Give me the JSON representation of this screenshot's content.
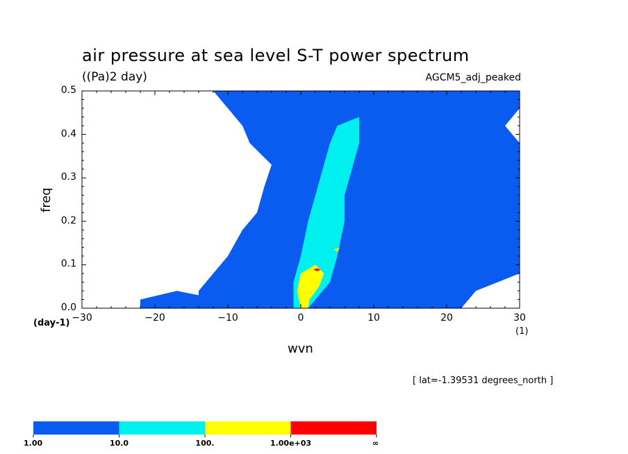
{
  "chart_data": {
    "type": "heatmap",
    "title": "air pressure at sea level S-T power spectrum",
    "units": "((Pa)2 day)",
    "model": "AGCM5_adj_peaked",
    "xlabel": "wvn",
    "ylabel": "freq",
    "x_unit_left": "(day-1)",
    "x_unit_right": "(1)",
    "annotation": "[ lat=-1.39531 degrees_north ]",
    "xlim": [
      -30,
      30
    ],
    "ylim": [
      0.0,
      0.5
    ],
    "x_ticks": [
      "-30",
      "-20",
      "-10",
      "0",
      "10",
      "20",
      "30"
    ],
    "y_ticks": [
      "0.0",
      "0.1",
      "0.2",
      "0.3",
      "0.4",
      "0.5"
    ],
    "contour_levels": [
      {
        "label": "1.00",
        "color": "#0a5cf0"
      },
      {
        "label": "10.0",
        "color": "#00f0f0"
      },
      {
        "label": "100.",
        "color": "#ffff00"
      },
      {
        "label": "1.00e+03",
        "color": "#ff0000"
      },
      {
        "label": "∞",
        "color": null
      }
    ],
    "regions": [
      {
        "level": 1,
        "name": "main-blue-band",
        "points": [
          [
            -14,
            0.0
          ],
          [
            -14,
            0.04
          ],
          [
            -12,
            0.08
          ],
          [
            -10,
            0.12
          ],
          [
            -8,
            0.18
          ],
          [
            -6,
            0.22
          ],
          [
            -5,
            0.28
          ],
          [
            -4,
            0.33
          ],
          [
            -7,
            0.38
          ],
          [
            -8,
            0.42
          ],
          [
            -10,
            0.46
          ],
          [
            -12,
            0.5
          ],
          [
            30,
            0.5
          ],
          [
            30,
            0.46
          ],
          [
            28,
            0.42
          ],
          [
            30,
            0.38
          ],
          [
            30,
            0.08
          ],
          [
            24,
            0.04
          ],
          [
            22,
            0.0
          ]
        ]
      },
      {
        "level": 1,
        "name": "left-fringe",
        "points": [
          [
            -22,
            0.0
          ],
          [
            -22,
            0.02
          ],
          [
            -17,
            0.04
          ],
          [
            -14,
            0.03
          ],
          [
            -14,
            0.0
          ]
        ]
      },
      {
        "level": 2,
        "name": "cyan-core",
        "points": [
          [
            -1,
            0.0
          ],
          [
            -1,
            0.06
          ],
          [
            0,
            0.12
          ],
          [
            1,
            0.2
          ],
          [
            2,
            0.26
          ],
          [
            3,
            0.32
          ],
          [
            4,
            0.38
          ],
          [
            5,
            0.42
          ],
          [
            8,
            0.44
          ],
          [
            8,
            0.38
          ],
          [
            7,
            0.32
          ],
          [
            6,
            0.26
          ],
          [
            6,
            0.2
          ],
          [
            5,
            0.12
          ],
          [
            4,
            0.06
          ],
          [
            2,
            0.02
          ],
          [
            1,
            0.0
          ]
        ]
      },
      {
        "level": 3,
        "name": "yellow-peak",
        "points": [
          [
            0,
            0.0
          ],
          [
            -0.5,
            0.04
          ],
          [
            0,
            0.08
          ],
          [
            2,
            0.1
          ],
          [
            3.2,
            0.08
          ],
          [
            2.5,
            0.05
          ],
          [
            1.2,
            0.02
          ],
          [
            1,
            0.0
          ]
        ]
      },
      {
        "level": 3,
        "name": "yellow-spot",
        "points": [
          [
            4.5,
            0.135
          ],
          [
            5.3,
            0.14
          ],
          [
            5.1,
            0.13
          ]
        ]
      },
      {
        "level": 4,
        "name": "red-peak",
        "points": [
          [
            1.7,
            0.089
          ],
          [
            2.3,
            0.092
          ],
          [
            2.7,
            0.088
          ],
          [
            2.2,
            0.085
          ]
        ]
      }
    ]
  }
}
